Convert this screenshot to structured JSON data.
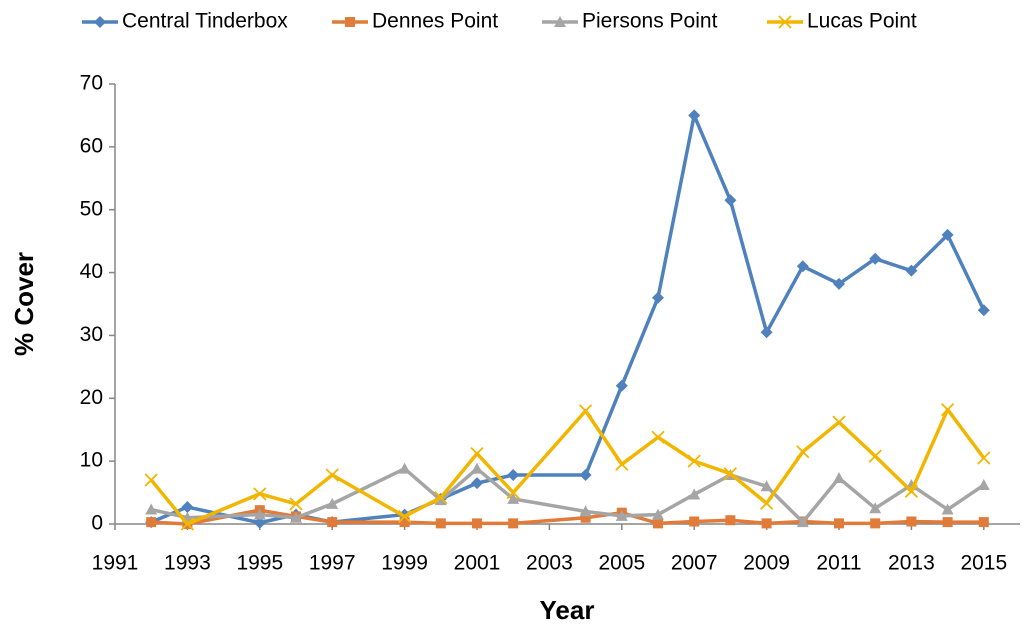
{
  "chart_data": {
    "type": "line",
    "x_label": "Year",
    "y_label": "% Cover",
    "x": [
      1992,
      1993,
      1995,
      1996,
      1997,
      1999,
      2000,
      2001,
      2002,
      2004,
      2005,
      2006,
      2007,
      2008,
      2009,
      2010,
      2011,
      2012,
      2013,
      2014,
      2015
    ],
    "series": [
      {
        "name": "Central Tinderbox",
        "color": "#4f81bd",
        "marker": "diamond",
        "values": [
          0.3,
          2.7,
          0.2,
          1.5,
          0.3,
          1.5,
          4.0,
          6.5,
          7.8,
          7.8,
          22.0,
          36.0,
          65.0,
          51.5,
          30.5,
          41.0,
          38.2,
          42.2,
          40.3,
          46.0,
          34.0
        ]
      },
      {
        "name": "Dennes Point",
        "color": "#e07b39",
        "marker": "square",
        "values": [
          0.3,
          0.0,
          2.2,
          1.2,
          0.3,
          0.3,
          0.1,
          0.1,
          0.1,
          1.0,
          1.8,
          0.1,
          0.4,
          0.6,
          0.1,
          0.4,
          0.1,
          0.1,
          0.4,
          0.3,
          0.3
        ]
      },
      {
        "name": "Piersons Point",
        "color": "#a5a5a5",
        "marker": "triangle",
        "values": [
          2.3,
          1.0,
          1.5,
          1.0,
          3.2,
          8.8,
          3.8,
          8.8,
          4.0,
          2.0,
          1.3,
          1.5,
          4.7,
          7.8,
          6.0,
          0.3,
          7.3,
          2.5,
          6.2,
          2.3,
          6.2
        ]
      },
      {
        "name": "Lucas Point",
        "color": "#f2b600",
        "marker": "x",
        "values": [
          7.0,
          0.0,
          4.8,
          3.2,
          7.8,
          1.2,
          4.2,
          11.2,
          5.0,
          18.0,
          9.5,
          13.8,
          10.0,
          8.0,
          3.3,
          11.5,
          16.2,
          10.8,
          5.2,
          18.2,
          10.5
        ]
      }
    ],
    "xlim": [
      1991,
      2016
    ],
    "xticks": [
      1991,
      1993,
      1995,
      1997,
      1999,
      2001,
      2003,
      2005,
      2007,
      2009,
      2011,
      2013,
      2015
    ],
    "ylim": [
      0,
      70
    ],
    "yticks": [
      0,
      10,
      20,
      30,
      40,
      50,
      60,
      70
    ],
    "grid": false,
    "legend": "top"
  }
}
